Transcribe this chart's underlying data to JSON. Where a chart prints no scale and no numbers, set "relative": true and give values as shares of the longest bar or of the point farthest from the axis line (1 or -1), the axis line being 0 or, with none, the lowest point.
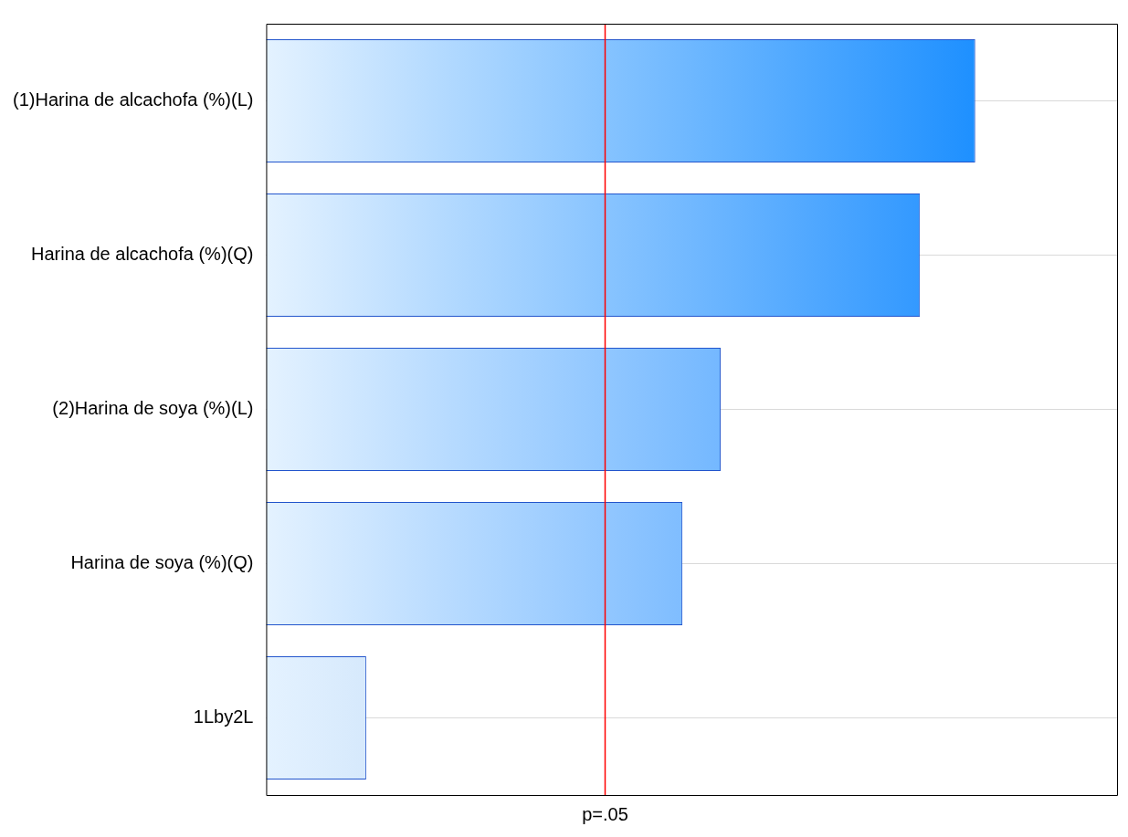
{
  "chart_data": {
    "type": "bar",
    "orientation": "horizontal",
    "relative": true,
    "categories": [
      "(1)Harina de alcachofa (%)(L)",
      "Harina de alcachofa (%)(Q)",
      "(2)Harina de soya (%)(L)",
      "Harina de soya (%)(Q)",
      "1Lby2L"
    ],
    "values": [
      1,
      0.922,
      0.641,
      0.587,
      0.141
    ],
    "colors": [
      "#1e90ff",
      "#3399ff",
      "#74b8ff",
      "#7fbdff",
      "#d6e9fc"
    ],
    "ref_lines": [
      {
        "axis": "x",
        "value": 0.478,
        "label": "p=.05",
        "color": "#ff0000"
      }
    ],
    "grid": "y",
    "tick_labels": "y",
    "legend": false
  }
}
